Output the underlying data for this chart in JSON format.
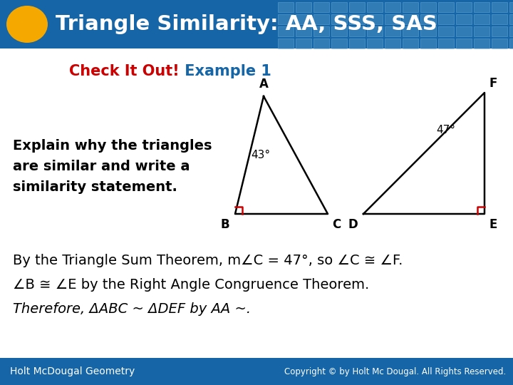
{
  "title": "Triangle Similarity: AA, SSS, SAS",
  "subtitle_red": "Check It Out!",
  "subtitle_blue": " Example 1",
  "left_text": "Explain why the triangles\nare similar and write a\nsimilarity statement.",
  "body_line1": "By the Triangle Sum Theorem, m∠C = 47°, so ∠C ≅ ∠F.",
  "body_line2": "∠B ≅ ∠E by the Right Angle Congruence Theorem.",
  "body_line3": "Therefore, ΔABC ~ ΔDEF by AA ~.",
  "footer_left": "Holt McDougal Geometry",
  "footer_right": "Copyright © by Holt Mc Dougal. All Rights Reserved.",
  "header_bg": "#1565a7",
  "title_color": "#ffffff",
  "oval_color": "#f5a800",
  "subtitle_red_color": "#cc0000",
  "subtitle_blue_color": "#1565a7",
  "body_bg": "#ffffff",
  "footer_bg": "#1565a7",
  "triangle_color": "#000000",
  "right_angle_color": "#cc0000",
  "angle_label_43": "43°",
  "angle_label_47": "47°",
  "tile_color": "#4a90c4",
  "tile_edge": "#6aaad8"
}
